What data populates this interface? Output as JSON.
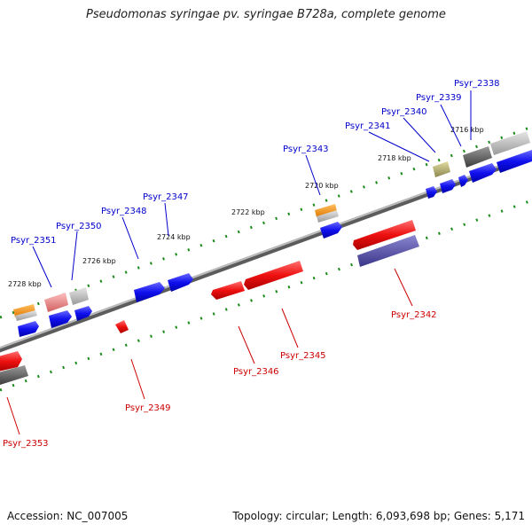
{
  "title": "Pseudomonas syringae pv. syringae B728a, complete genome",
  "footer": {
    "accession": "Accession: NC_007005",
    "summary": "Topology: circular; Length: 6,093,698 bp; Genes: 5,171"
  },
  "colors": {
    "forward_label": "#0000cc",
    "reverse_label": "#cc0000",
    "tick": "#1a8a1a",
    "backbone": "#888888"
  },
  "ticks": [
    {
      "label": "2716 kbp"
    },
    {
      "label": "2718 kbp"
    },
    {
      "label": "2720 kbp"
    },
    {
      "label": "2722 kbp"
    },
    {
      "label": "2724 kbp"
    },
    {
      "label": "2726 kbp"
    },
    {
      "label": "2728 kbp"
    }
  ],
  "genes": [
    {
      "label": "Psyr_2338",
      "strand": "forward"
    },
    {
      "label": "Psyr_2339",
      "strand": "forward"
    },
    {
      "label": "Psyr_2340",
      "strand": "forward"
    },
    {
      "label": "Psyr_2341",
      "strand": "forward"
    },
    {
      "label": "Psyr_2343",
      "strand": "forward"
    },
    {
      "label": "Psyr_2347",
      "strand": "forward"
    },
    {
      "label": "Psyr_2348",
      "strand": "forward"
    },
    {
      "label": "Psyr_2350",
      "strand": "forward"
    },
    {
      "label": "Psyr_2351",
      "strand": "forward"
    },
    {
      "label": "Psyr_2342",
      "strand": "reverse"
    },
    {
      "label": "Psyr_2345",
      "strand": "reverse"
    },
    {
      "label": "Psyr_2346",
      "strand": "reverse"
    },
    {
      "label": "Psyr_2349",
      "strand": "reverse"
    },
    {
      "label": "Psyr_2353",
      "strand": "reverse"
    }
  ]
}
